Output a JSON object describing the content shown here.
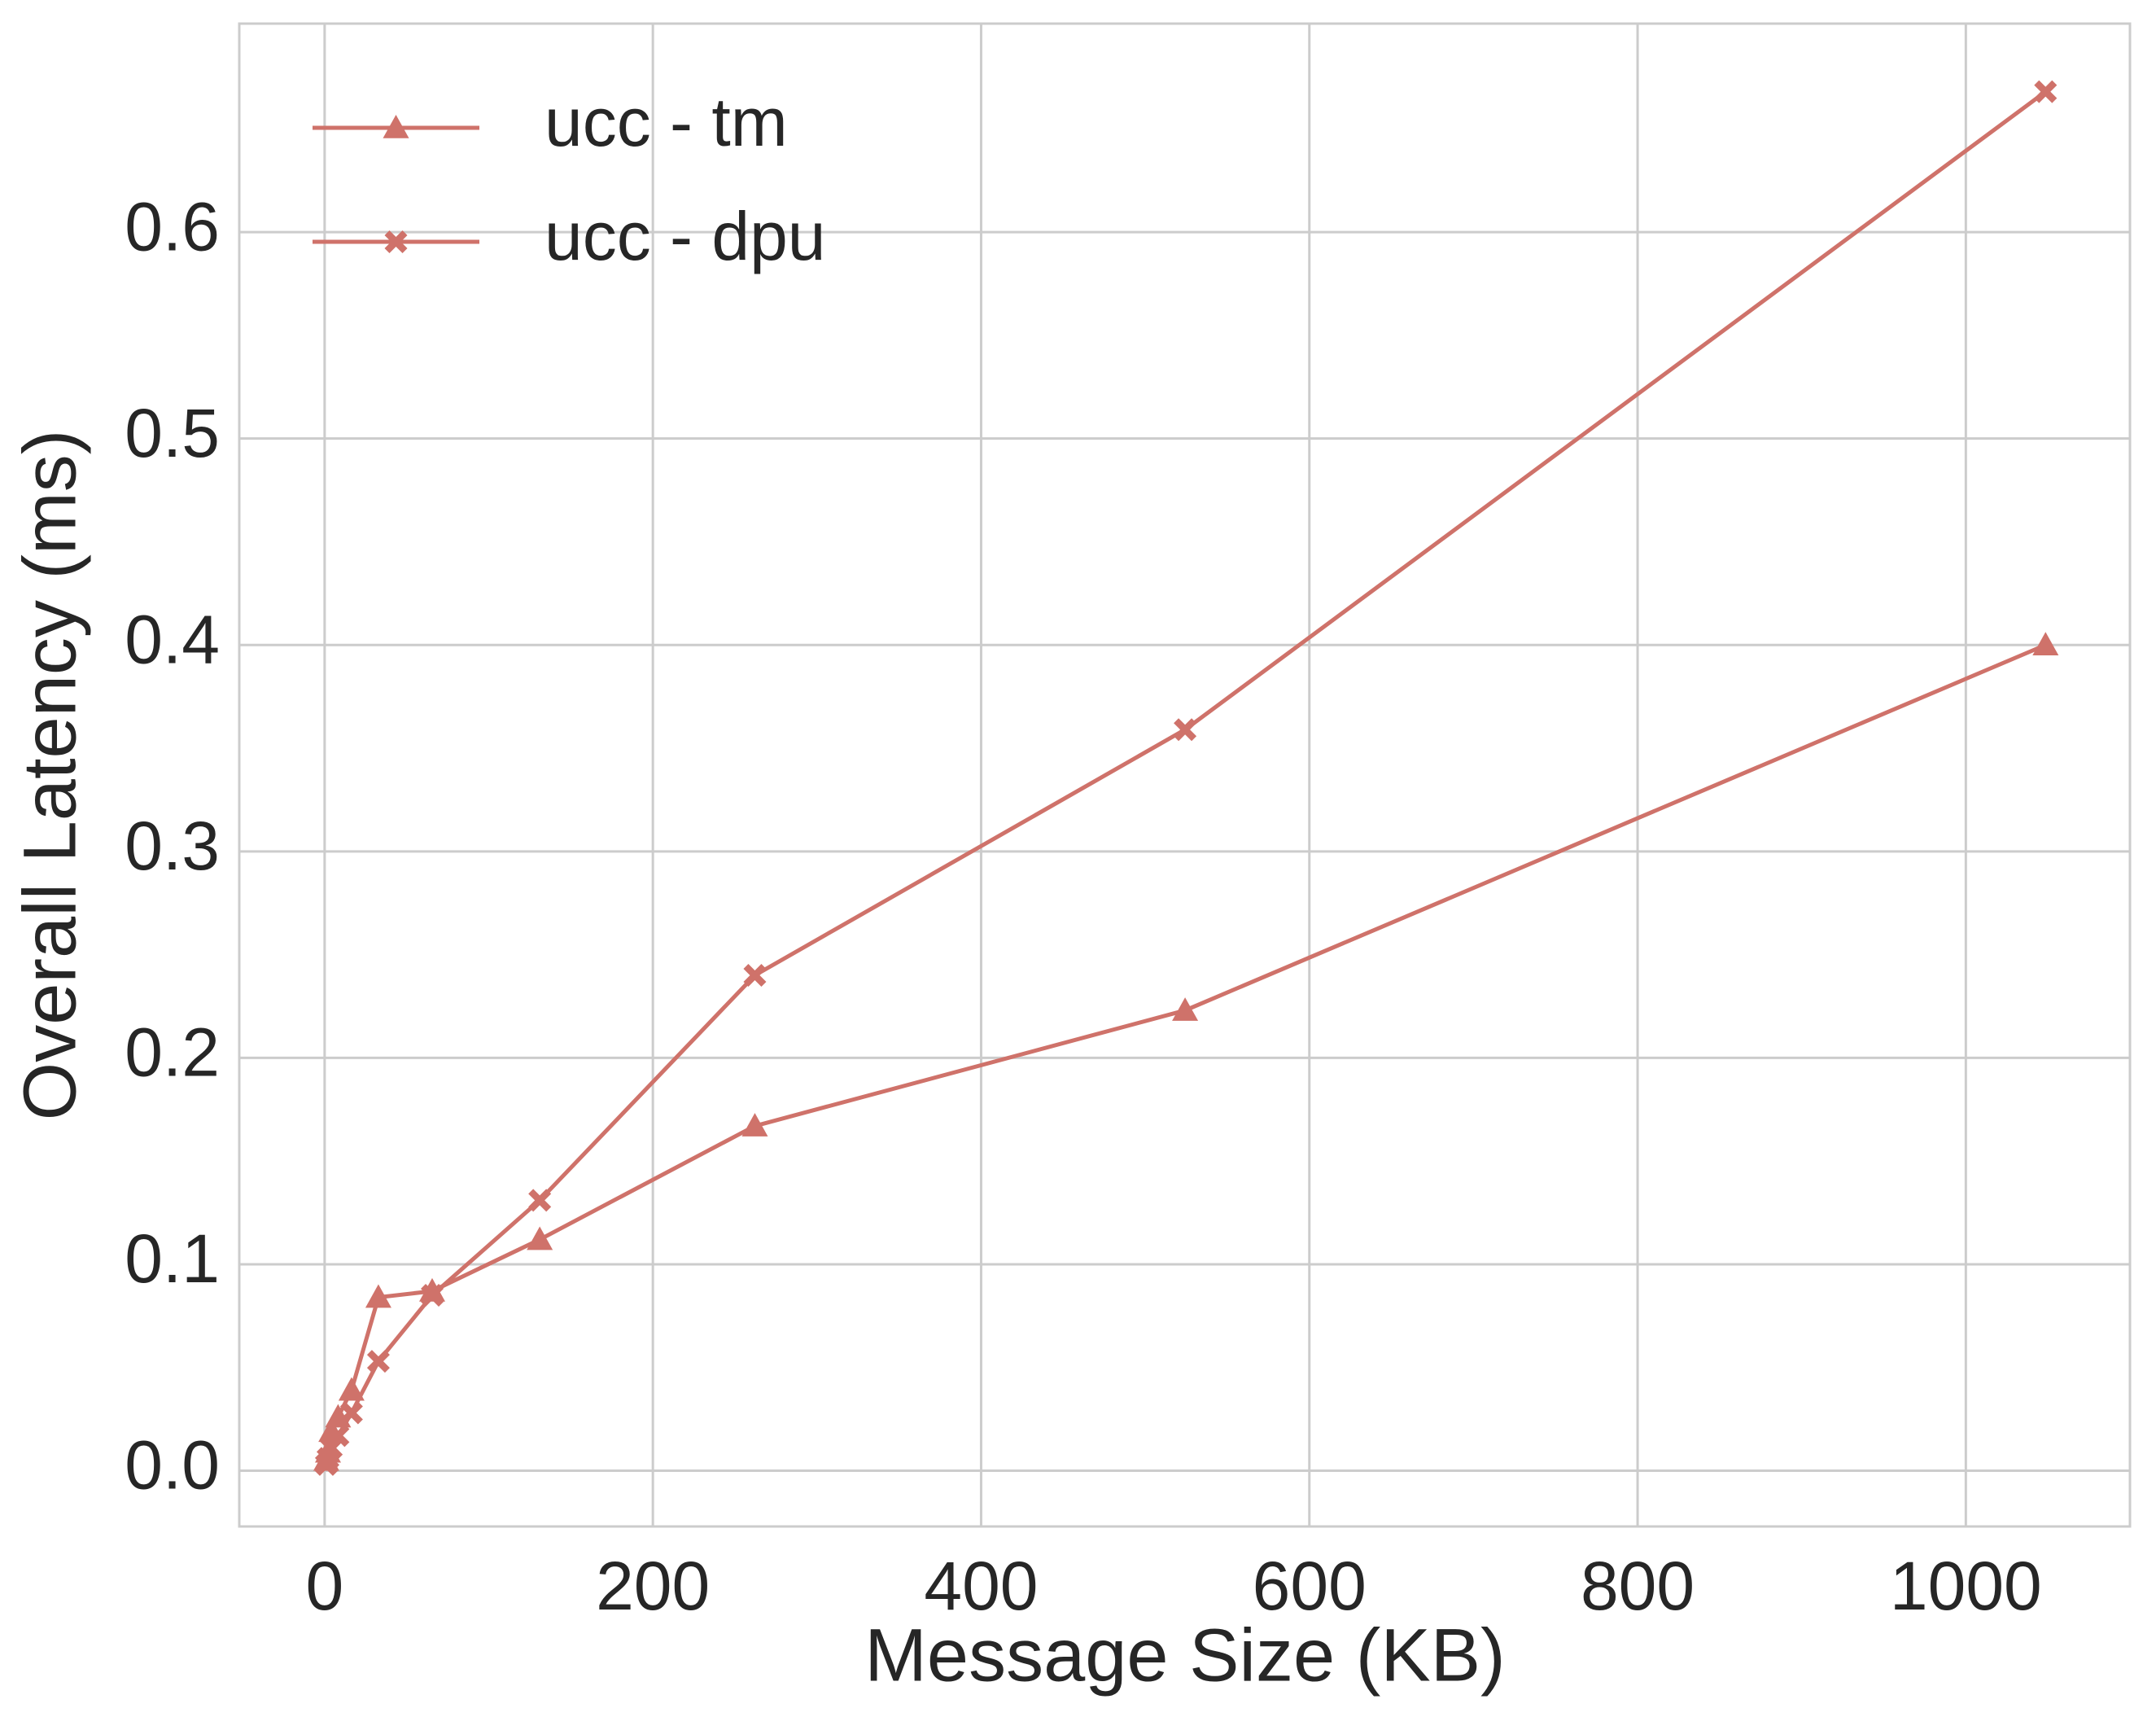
{
  "chart_data": {
    "type": "line",
    "xlabel": "Message Size (KB)",
    "ylabel": "Overall Latency (ms)",
    "x": [
      1.024,
      2.048,
      4.096,
      8.192,
      16.384,
      32.768,
      65.536,
      131.072,
      262.144,
      524.288,
      1048.576
    ],
    "series": [
      {
        "name": "ucc - tm",
        "color": "#cf726a",
        "marker": "triangle",
        "values": [
          0.005,
          0.009,
          0.019,
          0.026,
          0.039,
          0.084,
          0.087,
          0.112,
          0.167,
          0.223,
          0.4
        ]
      },
      {
        "name": "ucc - dpu",
        "color": "#cf726a",
        "marker": "x",
        "values": [
          0.003,
          0.006,
          0.011,
          0.017,
          0.028,
          0.053,
          0.085,
          0.131,
          0.24,
          0.359,
          0.668
        ]
      }
    ],
    "xlim": [
      -52,
      1100
    ],
    "ylim": [
      -0.027,
      0.701
    ],
    "xticks": [
      0,
      200,
      400,
      600,
      800,
      1000
    ],
    "yticks": [
      {
        "value": 0,
        "label": "0.0"
      },
      0.1,
      0.2,
      0.3,
      0.4,
      0.5,
      0.6
    ],
    "grid": true,
    "legend": "upper left"
  }
}
